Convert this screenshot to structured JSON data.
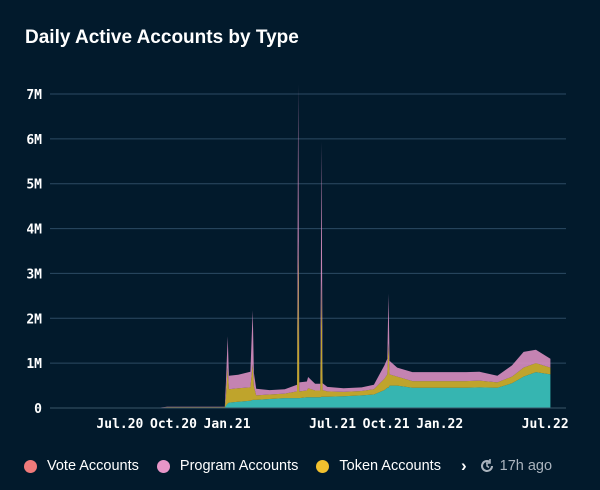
{
  "chart_data": {
    "type": "area",
    "stacked": true,
    "title": "Daily Active Accounts by Type",
    "xlabel": "",
    "ylabel": "",
    "ylim": [
      0,
      7000000
    ],
    "xlim": [
      "2020-03-03",
      "2022-08-04"
    ],
    "y_ticks": [
      {
        "v": 0,
        "label": "0"
      },
      {
        "v": 1000000,
        "label": "1M"
      },
      {
        "v": 2000000,
        "label": "2M"
      },
      {
        "v": 3000000,
        "label": "3M"
      },
      {
        "v": 4000000,
        "label": "4M"
      },
      {
        "v": 5000000,
        "label": "5M"
      },
      {
        "v": 6000000,
        "label": "6M"
      },
      {
        "v": 7000000,
        "label": "7M"
      }
    ],
    "x_ticks": [
      {
        "v": "2020-07-01",
        "label": "Jul.20"
      },
      {
        "v": "2020-10-01",
        "label": "Oct.20"
      },
      {
        "v": "2021-01-01",
        "label": "Jan.21"
      },
      {
        "v": "2021-07-01",
        "label": "Jul.21"
      },
      {
        "v": "2021-10-01",
        "label": "Oct.21"
      },
      {
        "v": "2022-01-01",
        "label": "Jan.22"
      },
      {
        "v": "2022-07-01",
        "label": "Jul.22"
      }
    ],
    "grid": true,
    "legend_position": "bottom",
    "x": [
      "2020-03-20",
      "2020-09-01",
      "2020-09-20",
      "2020-11-15",
      "2020-12-28",
      "2020-12-30",
      "2021-01-02",
      "2021-01-04",
      "2021-01-20",
      "2021-02-10",
      "2021-02-14",
      "2021-02-16",
      "2021-02-20",
      "2021-03-15",
      "2021-04-10",
      "2021-05-01",
      "2021-05-03",
      "2021-05-05",
      "2021-05-18",
      "2021-05-20",
      "2021-06-01",
      "2021-06-10",
      "2021-06-12",
      "2021-06-14",
      "2021-06-22",
      "2021-07-20",
      "2021-08-20",
      "2021-09-10",
      "2021-09-28",
      "2021-10-03",
      "2021-10-05",
      "2021-10-07",
      "2021-10-20",
      "2021-11-15",
      "2021-12-15",
      "2022-01-15",
      "2022-02-15",
      "2022-03-10",
      "2022-04-10",
      "2022-05-05",
      "2022-05-25",
      "2022-06-15",
      "2022-07-10"
    ],
    "series": [
      {
        "name": "",
        "color": "#3cc7c0",
        "values": [
          0,
          0,
          0.01,
          0.01,
          0.01,
          0.05,
          0.1,
          0.12,
          0.14,
          0.16,
          0.18,
          0.18,
          0.18,
          0.2,
          0.22,
          0.22,
          0.22,
          0.22,
          0.24,
          0.24,
          0.24,
          0.24,
          0.25,
          0.25,
          0.25,
          0.26,
          0.28,
          0.3,
          0.4,
          0.45,
          0.45,
          0.5,
          0.5,
          0.45,
          0.45,
          0.45,
          0.45,
          0.46,
          0.45,
          0.55,
          0.7,
          0.8,
          0.75
        ]
      },
      {
        "name": "Token Accounts",
        "color": "#d4b42c",
        "values": [
          0,
          0,
          0.01,
          0.01,
          0.01,
          0.2,
          0.8,
          0.3,
          0.3,
          0.3,
          0.8,
          0.3,
          0.1,
          0.1,
          0.1,
          0.15,
          3.5,
          0.15,
          0.15,
          0.2,
          0.15,
          0.15,
          2.6,
          0.15,
          0.12,
          0.1,
          0.1,
          0.12,
          0.25,
          0.3,
          1.0,
          0.25,
          0.2,
          0.15,
          0.15,
          0.15,
          0.15,
          0.15,
          0.12,
          0.15,
          0.2,
          0.2,
          0.15
        ]
      },
      {
        "name": "Program Accounts",
        "color": "#d98fc1",
        "values": [
          0,
          0,
          0.01,
          0.01,
          0.01,
          0.3,
          0.7,
          0.3,
          0.3,
          0.35,
          1.2,
          0.3,
          0.15,
          0.1,
          0.1,
          0.15,
          3.5,
          0.2,
          0.2,
          0.25,
          0.15,
          0.15,
          3.1,
          0.15,
          0.1,
          0.08,
          0.08,
          0.1,
          0.3,
          0.35,
          1.1,
          0.3,
          0.2,
          0.2,
          0.2,
          0.2,
          0.2,
          0.2,
          0.15,
          0.25,
          0.35,
          0.3,
          0.2
        ]
      },
      {
        "name": "Vote Accounts",
        "color": "#f07a7a",
        "values": [
          0,
          0,
          0,
          0,
          0,
          0,
          0,
          0,
          0,
          0,
          0,
          0,
          0,
          0,
          0,
          0,
          0,
          0,
          0,
          0,
          0,
          0,
          0,
          0,
          0,
          0,
          0,
          0,
          0,
          0,
          0,
          0,
          0,
          0,
          0,
          0,
          0,
          0,
          0,
          0,
          0,
          0,
          0
        ]
      }
    ],
    "value_unit": "M"
  },
  "legend": {
    "items": [
      {
        "label": "Vote Accounts",
        "color": "#f07a7a"
      },
      {
        "label": "Program Accounts",
        "color": "#e796c8"
      },
      {
        "label": "Token Accounts",
        "color": "#f2c12e"
      }
    ],
    "more_icon": "chevron-right-icon",
    "updated": "17h ago"
  }
}
